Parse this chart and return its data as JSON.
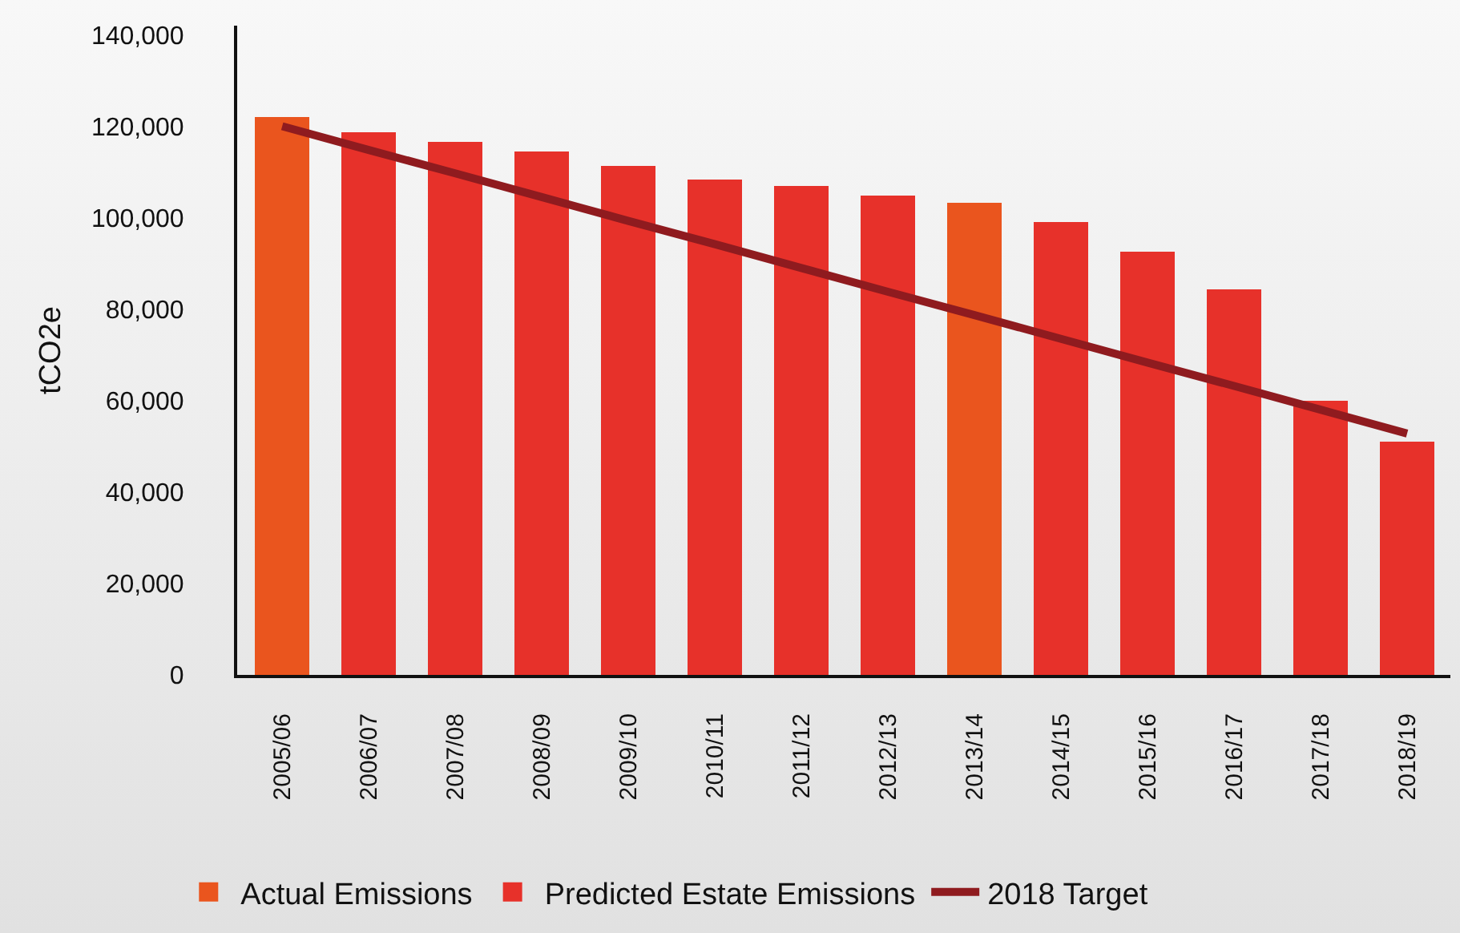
{
  "chart_data": {
    "type": "bar",
    "ylabel": "tCO2e",
    "categories": [
      "2005/06",
      "2006/07",
      "2007/08",
      "2008/09",
      "2009/10",
      "2010/11",
      "2011/12",
      "2012/13",
      "2013/14",
      "2014/15",
      "2015/16",
      "2016/17",
      "2017/18",
      "2018/19"
    ],
    "stacked": true,
    "legend": "bottom",
    "ylim": [
      0,
      142000
    ],
    "yticks": [
      0,
      {
        "value": 20000,
        "label": "20,000"
      },
      {
        "value": 40000,
        "label": "40,000"
      },
      {
        "value": 60000,
        "label": "60,000"
      },
      {
        "value": 80000,
        "label": "80,000"
      },
      {
        "value": 100000,
        "label": "100,000"
      },
      {
        "value": 120000,
        "label": "120,000"
      },
      {
        "value": 140000,
        "label": "140,000"
      }
    ],
    "series": [
      {
        "name": "Actual Emissions",
        "color": "#ea551e",
        "values": [
          122000,
          null,
          null,
          null,
          null,
          null,
          null,
          null,
          103200,
          null,
          null,
          null,
          null,
          null
        ]
      },
      {
        "name": "Predicted Estate Emissions",
        "color": "#e7312a",
        "values": [
          null,
          118600,
          116500,
          114500,
          111400,
          108300,
          106900,
          104900,
          null,
          99000,
          92500,
          84300,
          60000,
          51100
        ]
      },
      {
        "name": "2018 Target",
        "type": "line",
        "color": "#8f1b1f",
        "values": [
          120000,
          114800,
          109700,
          104500,
          99300,
          94200,
          89000,
          83800,
          78700,
          73500,
          68300,
          63200,
          58000,
          52800
        ]
      }
    ]
  }
}
